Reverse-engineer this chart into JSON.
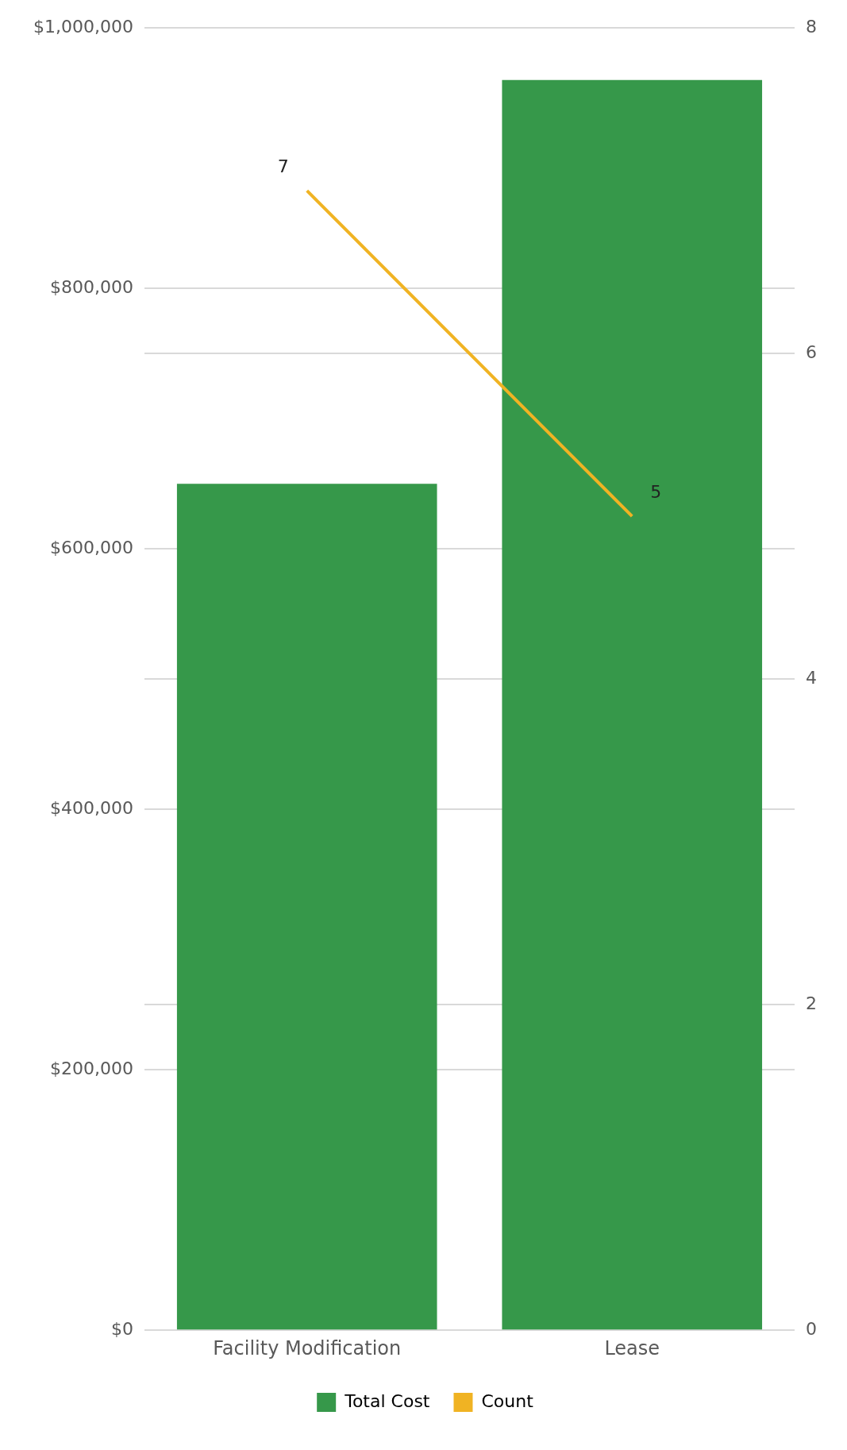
{
  "chart_data": {
    "type": "bar",
    "categories": [
      "Facility Modification",
      "Lease"
    ],
    "series": [
      {
        "name": "Total Cost",
        "color": "#36984a",
        "values": [
          650000,
          960000
        ]
      },
      {
        "name": "Count",
        "type": "line",
        "axis": "y2",
        "color": "#f0b323",
        "values": [
          7,
          5
        ],
        "value_labels": [
          "7",
          "5"
        ]
      }
    ],
    "ylim": [
      0,
      1000000
    ],
    "yticks": [
      {
        "value": 0,
        "label": "$0"
      },
      {
        "value": 200000,
        "label": "$200,000"
      },
      {
        "value": 400000,
        "label": "$400,000"
      },
      {
        "value": 600000,
        "label": "$600,000"
      },
      {
        "value": 800000,
        "label": "$800,000"
      },
      {
        "value": 1000000,
        "label": "$1,000,000"
      }
    ],
    "y2lim": [
      0,
      8
    ],
    "y2ticks": [
      0,
      2,
      4,
      6,
      8
    ],
    "grid": "y",
    "legend": "bottom",
    "marker": "none",
    "line_style": "solid"
  }
}
